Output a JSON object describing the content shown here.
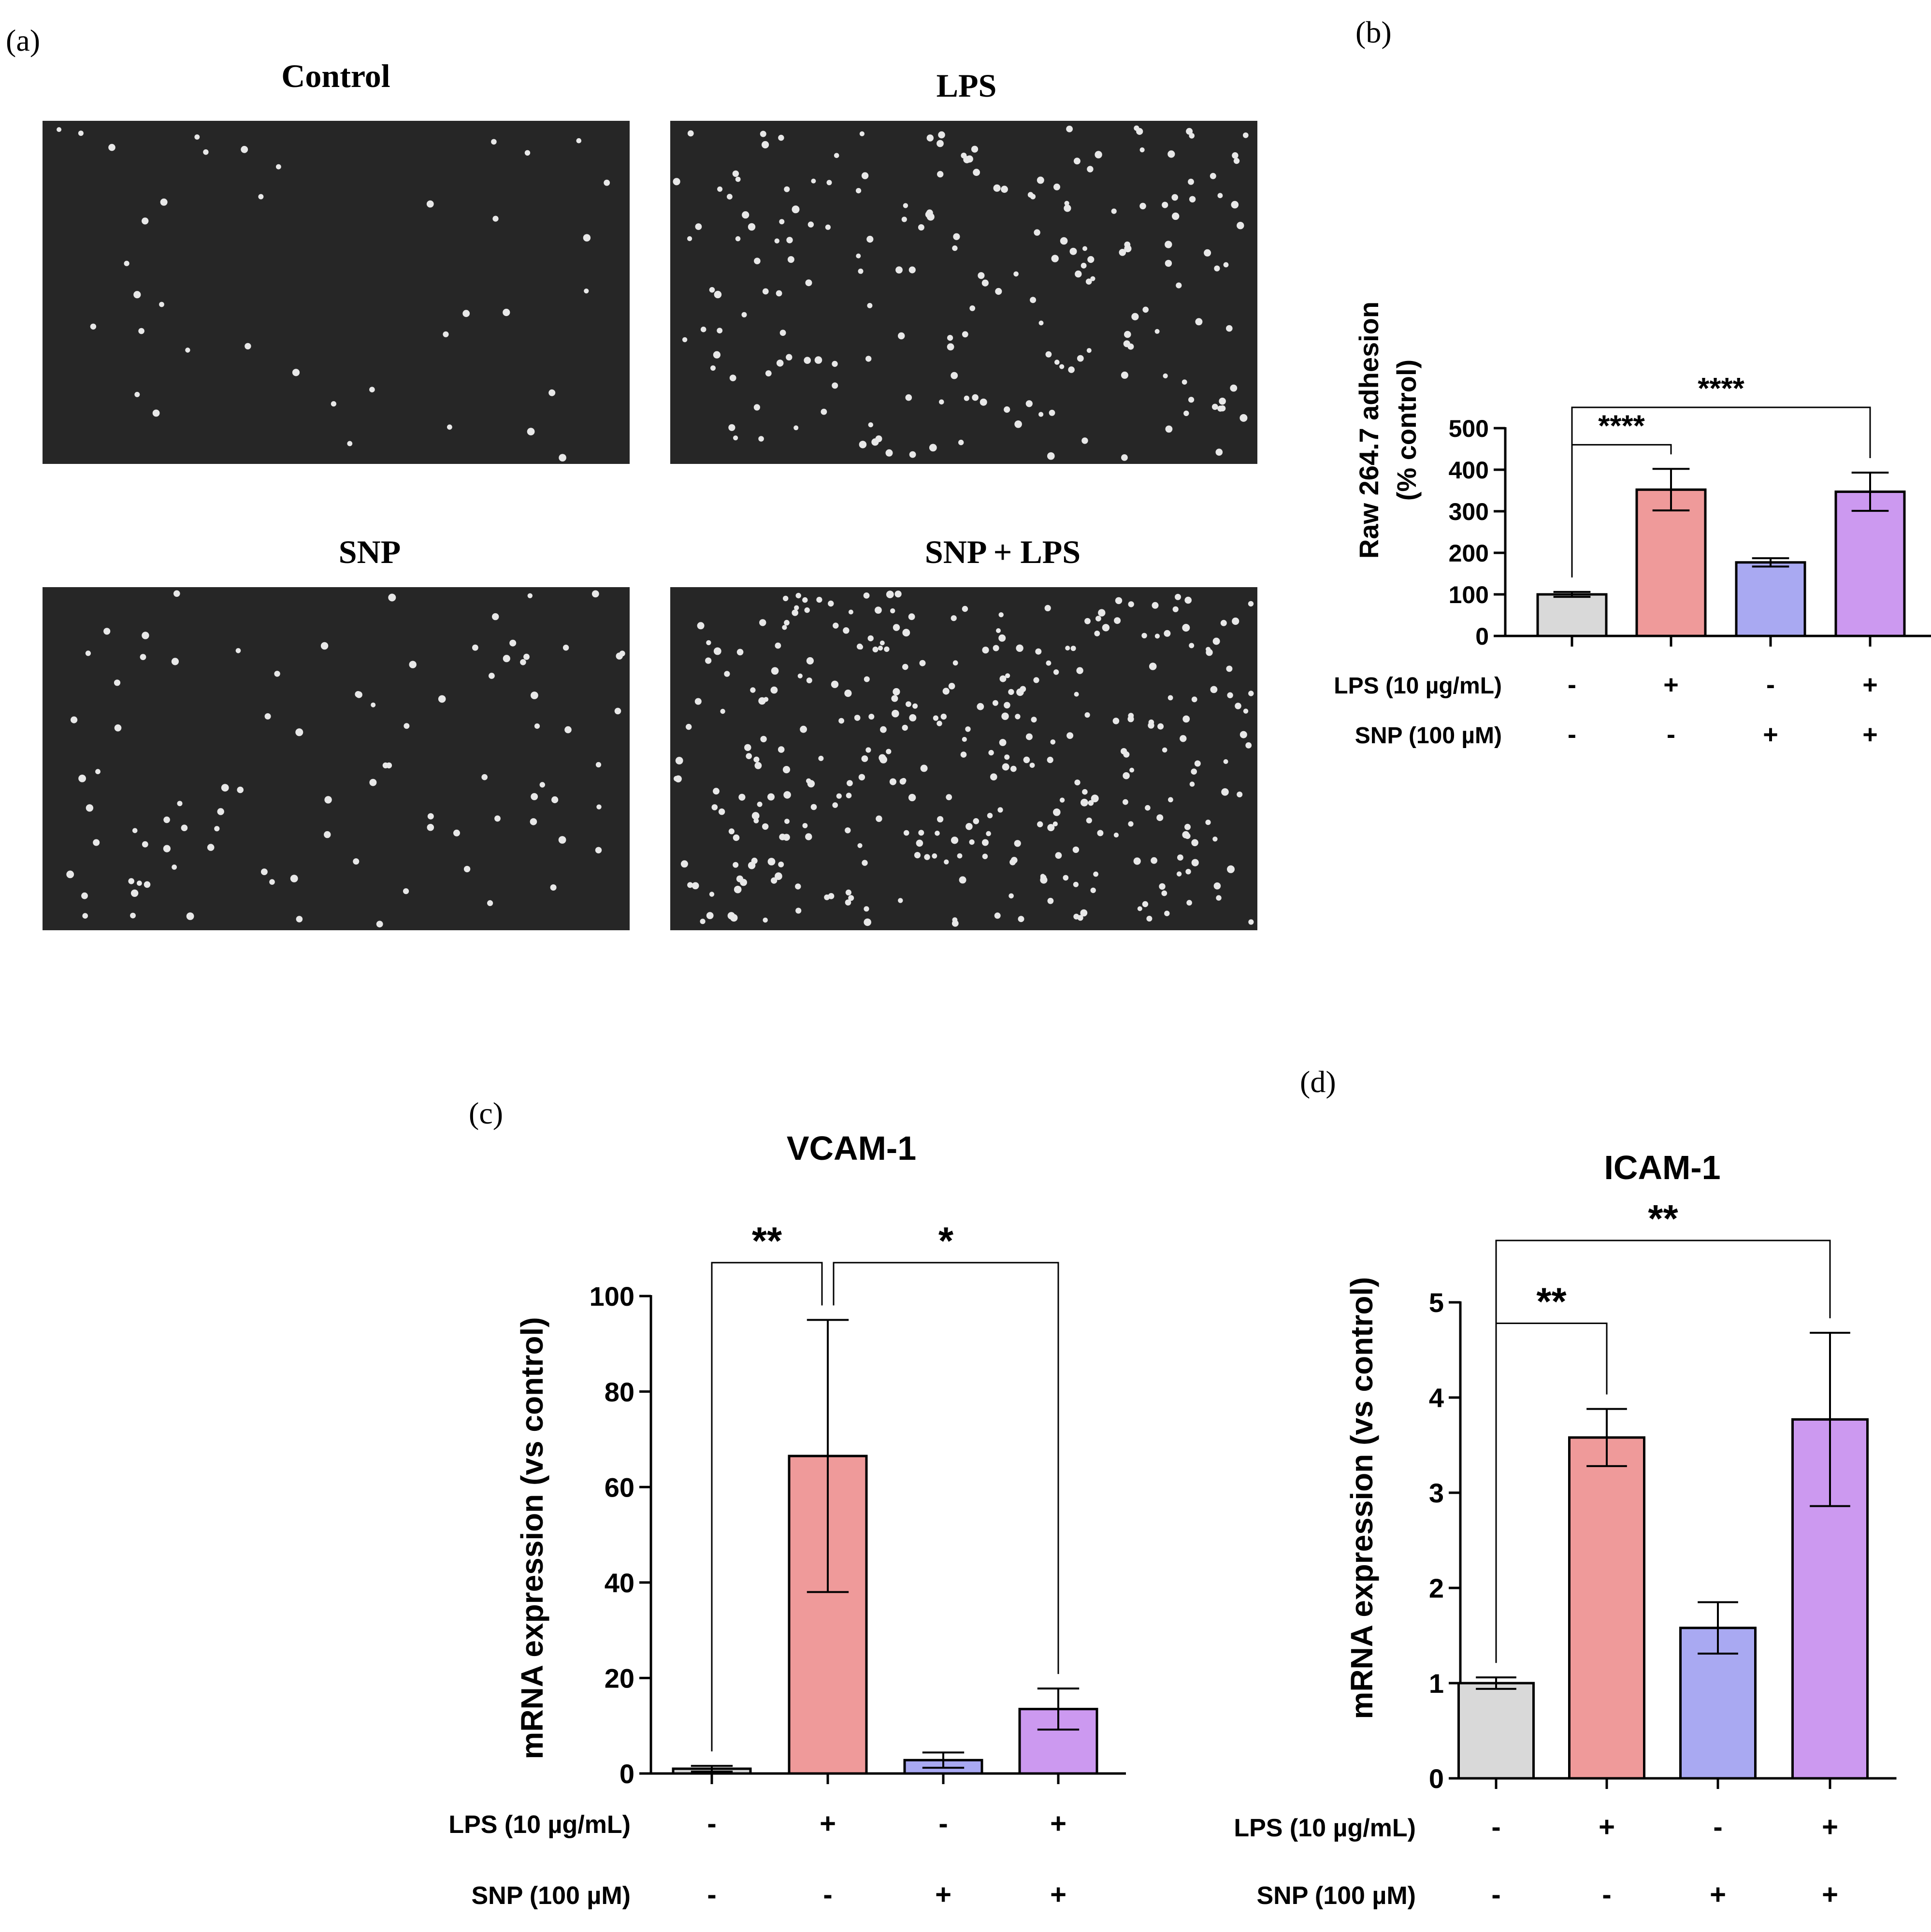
{
  "colors": {
    "control": "#d9d9d9",
    "lps": "#ef9a9a",
    "snp": "#a9a9f2",
    "snp_lps": "#cc99f0",
    "micrograph_bg": "#262626",
    "cell": "#e8e8e8"
  },
  "panel_a": {
    "label": "(a)",
    "images": [
      {
        "title": "Control",
        "cell_count": 38
      },
      {
        "title": "LPS",
        "cell_count": 190
      },
      {
        "title": "SNP",
        "cell_count": 90
      },
      {
        "title": "SNP + LPS",
        "cell_count": 330
      }
    ]
  },
  "treatment_labels": {
    "lps": "LPS (10 µg/mL)",
    "snp": "SNP (100 µM)",
    "lps_signs": [
      "-",
      "+",
      "-",
      "+"
    ],
    "snp_signs": [
      "-",
      "-",
      "+",
      "+"
    ]
  },
  "chart_data": [
    {
      "panel_label": "(b)",
      "type": "bar",
      "title": "",
      "ylabel_line1": "Raw 264.7 adhesion",
      "ylabel_line2": "(% control)",
      "categories": [
        "Control",
        "LPS",
        "SNP",
        "SNP + LPS"
      ],
      "values": [
        100,
        352,
        177,
        347
      ],
      "errors": [
        6,
        50,
        10,
        46
      ],
      "ylim": [
        0,
        500
      ],
      "yticks": [
        0,
        100,
        200,
        300,
        400,
        500
      ],
      "significance": [
        {
          "from": 0,
          "to": 1,
          "label": "****",
          "bar_y": 460
        },
        {
          "from": 0,
          "to": 3,
          "label": "****",
          "bar_y": 550
        }
      ]
    },
    {
      "panel_label": "(c)",
      "type": "bar",
      "title": "VCAM-1",
      "ylabel_line1": "mRNA expression (vs control)",
      "ylabel_line2": "",
      "categories": [
        "Control",
        "LPS",
        "SNP",
        "SNP + LPS"
      ],
      "values": [
        1,
        66.5,
        2.8,
        13.5
      ],
      "errors": [
        0.6,
        28.5,
        1.6,
        4.3
      ],
      "ylim": [
        0,
        100
      ],
      "yticks": [
        0,
        20,
        40,
        60,
        80,
        100
      ],
      "significance": [
        {
          "from": 0,
          "to": 1,
          "label": "**",
          "bar_y": 107
        },
        {
          "from": 1,
          "to": 3,
          "label": "*",
          "bar_y": 107
        }
      ]
    },
    {
      "panel_label": "(d)",
      "type": "bar",
      "title": "ICAM-1",
      "ylabel_line1": "mRNA expression (vs control)",
      "ylabel_line2": "",
      "categories": [
        "Control",
        "LPS",
        "SNP",
        "SNP + LPS"
      ],
      "values": [
        1,
        3.58,
        1.58,
        3.77
      ],
      "errors": [
        0.06,
        0.3,
        0.27,
        0.91
      ],
      "ylim": [
        0,
        5
      ],
      "yticks": [
        0,
        1,
        2,
        3,
        4,
        5
      ],
      "significance": [
        {
          "from": 0,
          "to": 1,
          "label": "**",
          "bar_y": 4.78
        },
        {
          "from": 0,
          "to": 3,
          "label": "**",
          "bar_y": 5.65
        }
      ]
    }
  ]
}
